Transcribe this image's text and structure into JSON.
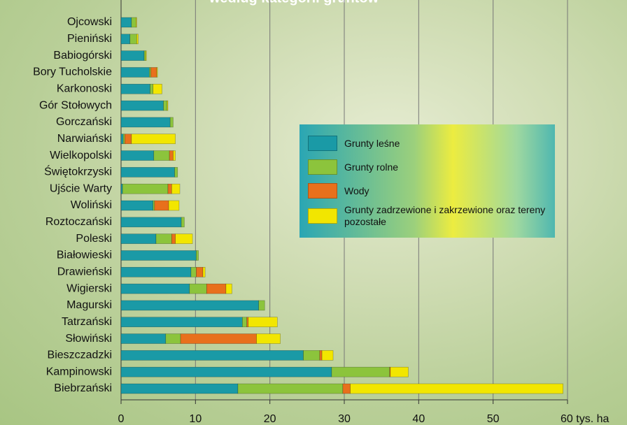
{
  "chart_data": {
    "type": "bar",
    "orientation": "horizontal",
    "stacked": true,
    "title": "według kategorii gruntów",
    "categories": [
      "Ojcowski",
      "Pieniński",
      "Babiogórski",
      "Bory Tucholskie",
      "Karkonoski",
      "Gór Stołowych",
      "Gorczański",
      "Narwiański",
      "Wielkopolski",
      "Świętokrzyski",
      "Ujście Warty",
      "Woliński",
      "Roztoczański",
      "Poleski",
      "Białowieski",
      "Drawieński",
      "Wigierski",
      "Magurski",
      "Tatrzański",
      "Słowiński",
      "Bieszczadzki",
      "Kampinowski",
      "Biebrzański"
    ],
    "series": [
      {
        "name": "Grunty leśne",
        "color": "#1a9aa6",
        "values": [
          1.4,
          1.2,
          3.1,
          3.8,
          3.9,
          5.7,
          6.6,
          0.3,
          4.4,
          7.2,
          0.2,
          4.3,
          8.1,
          4.7,
          10.1,
          9.4,
          9.2,
          18.5,
          16.3,
          6.0,
          24.5,
          28.3,
          15.7
        ]
      },
      {
        "name": "Grunty rolne",
        "color": "#8cc43c",
        "values": [
          0.6,
          0.9,
          0.2,
          0.2,
          0.4,
          0.5,
          0.4,
          0.2,
          2.1,
          0.4,
          6.1,
          0.2,
          0.4,
          2.1,
          0.3,
          0.7,
          2.3,
          0.8,
          0.6,
          2.0,
          2.2,
          7.8,
          14.1
        ]
      },
      {
        "name": "Wody",
        "color": "#e8701c",
        "values": [
          0,
          0,
          0,
          0.8,
          0,
          0,
          0,
          0.9,
          0.5,
          0,
          0.5,
          1.9,
          0,
          0.5,
          0,
          0.9,
          2.6,
          0,
          0.2,
          10.2,
          0.3,
          0.1,
          1.0
        ]
      },
      {
        "name": "Grunty zadrzewione i zakrzewione oraz tereny pozostałe",
        "color": "#f2e600",
        "values": [
          0.1,
          0.2,
          0.1,
          0.1,
          1.2,
          0.1,
          0,
          5.9,
          0.3,
          0,
          1.1,
          1.4,
          0,
          2.3,
          0,
          0.3,
          0.8,
          0,
          3.9,
          3.2,
          1.5,
          2.4,
          28.6
        ]
      }
    ],
    "xlim": [
      0,
      60
    ],
    "xticks": [
      0,
      10,
      20,
      30,
      40,
      50,
      {
        "value": 60,
        "label": "60 tys. ha"
      }
    ],
    "grid": true
  }
}
